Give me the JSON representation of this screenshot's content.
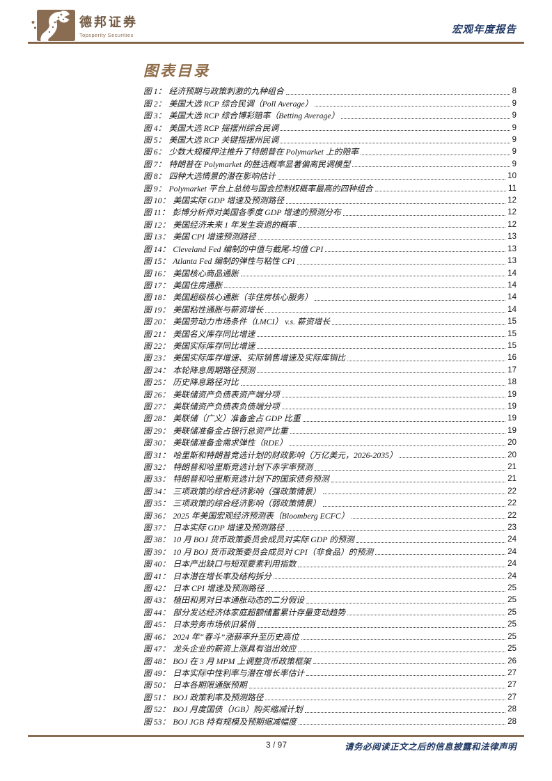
{
  "header": {
    "brand_cn": "德邦证券",
    "brand_en": "Topsperity Securities",
    "report_type": "宏观年度报告"
  },
  "title": "图表目录",
  "toc": {
    "entries": [
      {
        "label": "图 1：",
        "title": "经济预期与政策刺激的九种组合",
        "page": "8"
      },
      {
        "label": "图 2：",
        "title": "美国大选 RCP 综合民调（Poll Average）",
        "page": "9"
      },
      {
        "label": "图 3：",
        "title": "美国大选 RCP 综合博彩赔率（Betting Average）",
        "page": "9"
      },
      {
        "label": "图 4：",
        "title": "美国大选 RCP 摇摆州综合民调",
        "page": "9"
      },
      {
        "label": "图 5：",
        "title": "美国大选 RCP 关键摇摆州民调",
        "page": "9"
      },
      {
        "label": "图 6：",
        "title": "少数大规模押注推升了特朗普在 Polymarket 上的赔率",
        "page": "9"
      },
      {
        "label": "图 7：",
        "title": "特朗普在 Polymarket 的胜选概率显著偏离民调模型",
        "page": "9"
      },
      {
        "label": "图 8：",
        "title": "四种大选情景的潜在影响估计",
        "page": "10"
      },
      {
        "label": "图 9：",
        "title": "Polymarket 平台上总统与国会控制权概率最高的四种组合",
        "page": "11"
      },
      {
        "label": "图 10：",
        "title": "美国实际 GDP 增速及预测路径",
        "page": "12"
      },
      {
        "label": "图 11：",
        "title": "彭博分析师对美国各季度 GDP 增速的预测分布",
        "page": "12"
      },
      {
        "label": "图 12：",
        "title": "美国经济未来 1 年发生衰退的概率",
        "page": "12"
      },
      {
        "label": "图 13：",
        "title": "美国 CPI 增速预测路径",
        "page": "13"
      },
      {
        "label": "图 14：",
        "title": "Cleveland Fed 编制的中值与截尾-均值 CPI",
        "page": "13"
      },
      {
        "label": "图 15：",
        "title": "Atlanta Fed 编制的弹性与粘性 CPI",
        "page": "13"
      },
      {
        "label": "图 16：",
        "title": "美国核心商品通胀",
        "page": "14"
      },
      {
        "label": "图 17：",
        "title": "美国住房通胀",
        "page": "14"
      },
      {
        "label": "图 18：",
        "title": "美国超级核心通胀（非住房核心服务）",
        "page": "14"
      },
      {
        "label": "图 19：",
        "title": "美国粘性通胀与薪资增长",
        "page": "14"
      },
      {
        "label": "图 20：",
        "title": "美国劳动力市场条件（LMCI） v.s. 薪资增长",
        "page": "15"
      },
      {
        "label": "图 21：",
        "title": "美国名义库存同比增速",
        "page": "15"
      },
      {
        "label": "图 22：",
        "title": "美国实际库存同比增速",
        "page": "15"
      },
      {
        "label": "图 23：",
        "title": "美国实际库存增速、实际销售增速及实际库销比",
        "page": "16"
      },
      {
        "label": "图 24：",
        "title": "本轮降息周期路径预测",
        "page": "17"
      },
      {
        "label": "图 25：",
        "title": "历史降息路径对比",
        "page": "18"
      },
      {
        "label": "图 26：",
        "title": "美联储资产负债表资产端分项",
        "page": "19"
      },
      {
        "label": "图 27：",
        "title": "美联储资产负债表负债端分项",
        "page": "19"
      },
      {
        "label": "图 28：",
        "title": "美联储（广义）准备金占 GDP 比重",
        "page": "19"
      },
      {
        "label": "图 29：",
        "title": "美联储准备金占银行总资产比重",
        "page": "19"
      },
      {
        "label": "图 30：",
        "title": "美联储准备金需求弹性（RDE）",
        "page": "20"
      },
      {
        "label": "图 31：",
        "title": "哈里斯和特朗普竞选计划的财政影响（万亿美元，2026-2035）",
        "page": "20"
      },
      {
        "label": "图 32：",
        "title": "特朗普和哈里斯竞选计划下赤字率预测",
        "page": "21"
      },
      {
        "label": "图 33：",
        "title": "特朗普和哈里斯竞选计划下的国家债务预测",
        "page": "21"
      },
      {
        "label": "图 34：",
        "title": "三项政策的综合经济影响（强政策情景）",
        "page": "22"
      },
      {
        "label": "图 35：",
        "title": "三项政策的综合经济影响（弱政策情景）",
        "page": "22"
      },
      {
        "label": "图 36：",
        "title": "2025 年美国宏观经济预测表（Bloomberg ECFC）",
        "page": "22"
      },
      {
        "label": "图 37：",
        "title": "日本实际 GDP 增速及预测路径",
        "page": "23"
      },
      {
        "label": "图 38：",
        "title": "10 月 BOJ 货币政策委员会成员对实际 GDP 的预测",
        "page": "24"
      },
      {
        "label": "图 39：",
        "title": "10 月 BOJ 货币政策委员会成员对 CPI（非食品）的预测",
        "page": "24"
      },
      {
        "label": "图 40：",
        "title": "日本产出缺口与短观要素利用指数",
        "page": "24"
      },
      {
        "label": "图 41：",
        "title": "日本潜在增长率及结构拆分",
        "page": "24"
      },
      {
        "label": "图 42：",
        "title": "日本 CPI 增速及预测路径",
        "page": "25"
      },
      {
        "label": "图 43：",
        "title": "植田和男对日本通胀动态的二分假设",
        "page": "25"
      },
      {
        "label": "图 44：",
        "title": "部分发达经济体家庭超额储蓄累计存量变动趋势",
        "page": "25"
      },
      {
        "label": "图 45：",
        "title": "日本劳务市场依旧紧俏",
        "page": "25"
      },
      {
        "label": "图 46：",
        "title": "2024 年“春斗”涨薪率升至历史高位",
        "page": "25"
      },
      {
        "label": "图 47：",
        "title": "龙头企业的薪资上涨具有溢出效应",
        "page": "25"
      },
      {
        "label": "图 48：",
        "title": "BOJ 在 3 月 MPM 上调整货币政策框架",
        "page": "26"
      },
      {
        "label": "图 49：",
        "title": "日本实际中性利率与潜在增长率估计",
        "page": "27"
      },
      {
        "label": "图 50：",
        "title": "日本各期限通胀预期",
        "page": "27"
      },
      {
        "label": "图 51：",
        "title": "BOJ 政策利率及预测路径",
        "page": "27"
      },
      {
        "label": "图 52：",
        "title": "BOJ 月度国债（JGB）购买缩减计划",
        "page": "28"
      },
      {
        "label": "图 53：",
        "title": "BOJ JGB 持有规模及预期缩减幅度",
        "page": "28"
      }
    ]
  },
  "footer": {
    "page_indicator": "3 / 97",
    "disclaimer": "请务必阅读正文之后的信息披露和法律声明"
  },
  "colors": {
    "brand_brown": "#8a6c52",
    "navy": "#1f3864"
  }
}
